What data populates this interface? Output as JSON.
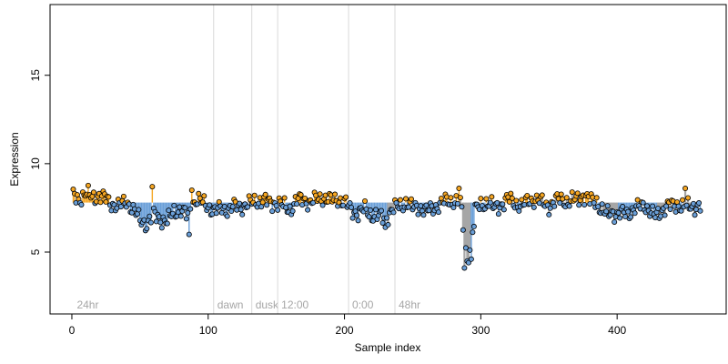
{
  "chart_data": {
    "type": "scatter",
    "title": "",
    "xlabel": "Sample index",
    "ylabel": "Expression",
    "xlim": [
      -16,
      480
    ],
    "ylim": [
      1.5,
      19
    ],
    "xticks": [
      0,
      100,
      200,
      300,
      400
    ],
    "yticks": [
      5,
      10,
      15
    ],
    "baseline": 7.8,
    "grid": false,
    "legend": "none",
    "colors": {
      "above": "#f5a623",
      "below": "#6a9fd8",
      "neutral": "#a6a6a6",
      "point_fill_high": "#f5a623",
      "point_fill_low": "#6a9fd8",
      "point_stroke": "#000000",
      "divider": "#d9d9d9",
      "region_label": "#a6a6a6"
    },
    "regions": [
      {
        "label": "24hr",
        "start": 1
      },
      {
        "label": "dawn",
        "start": 104
      },
      {
        "label": "dusk",
        "start": 132
      },
      {
        "label": "12:00",
        "start": 151
      },
      {
        "label": "0:00",
        "start": 203
      },
      {
        "label": "48hr",
        "start": 237
      }
    ],
    "gray_segments": [
      [
        232,
        238
      ],
      [
        263,
        268
      ],
      [
        285,
        292
      ],
      [
        338,
        372
      ],
      [
        388,
        400
      ],
      [
        430,
        445
      ],
      [
        448,
        460
      ]
    ],
    "anchors": [
      [
        1,
        8.2
      ],
      [
        5,
        8.0
      ],
      [
        10,
        8.3
      ],
      [
        15,
        8.1
      ],
      [
        20,
        8.2
      ],
      [
        25,
        8.0
      ],
      [
        30,
        7.7
      ],
      [
        35,
        7.6
      ],
      [
        40,
        7.9
      ],
      [
        45,
        7.4
      ],
      [
        50,
        6.8
      ],
      [
        55,
        6.6
      ],
      [
        60,
        7.1
      ],
      [
        65,
        6.9
      ],
      [
        70,
        6.7
      ],
      [
        75,
        7.3
      ],
      [
        80,
        7.4
      ],
      [
        85,
        7.0
      ],
      [
        88,
        7.7
      ],
      [
        92,
        8.0
      ],
      [
        95,
        7.8
      ],
      [
        100,
        7.6
      ],
      [
        105,
        7.3
      ],
      [
        110,
        7.5
      ],
      [
        115,
        7.4
      ],
      [
        120,
        7.6
      ],
      [
        125,
        7.6
      ],
      [
        130,
        7.7
      ],
      [
        135,
        7.9
      ],
      [
        140,
        7.9
      ],
      [
        145,
        7.8
      ],
      [
        150,
        7.8
      ],
      [
        155,
        7.6
      ],
      [
        160,
        7.4
      ],
      [
        165,
        7.9
      ],
      [
        170,
        8.0
      ],
      [
        175,
        7.8
      ],
      [
        180,
        8.0
      ],
      [
        185,
        8.1
      ],
      [
        190,
        7.9
      ],
      [
        195,
        8.0
      ],
      [
        200,
        7.8
      ],
      [
        205,
        7.4
      ],
      [
        210,
        7.2
      ],
      [
        215,
        7.4
      ],
      [
        220,
        7.1
      ],
      [
        225,
        7.0
      ],
      [
        230,
        6.9
      ],
      [
        235,
        7.4
      ],
      [
        240,
        7.6
      ],
      [
        245,
        7.8
      ],
      [
        250,
        7.5
      ],
      [
        255,
        7.6
      ],
      [
        260,
        7.3
      ],
      [
        265,
        7.5
      ],
      [
        270,
        7.7
      ],
      [
        275,
        7.9
      ],
      [
        280,
        7.9
      ],
      [
        285,
        7.8
      ],
      [
        288,
        5.8
      ],
      [
        290,
        4.5
      ],
      [
        293,
        5.5
      ],
      [
        296,
        7.3
      ],
      [
        300,
        7.7
      ],
      [
        305,
        7.8
      ],
      [
        310,
        7.5
      ],
      [
        315,
        7.7
      ],
      [
        320,
        8.0
      ],
      [
        325,
        7.8
      ],
      [
        330,
        7.6
      ],
      [
        335,
        7.9
      ],
      [
        340,
        8.0
      ],
      [
        345,
        7.8
      ],
      [
        350,
        7.6
      ],
      [
        355,
        7.9
      ],
      [
        360,
        8.0
      ],
      [
        365,
        7.8
      ],
      [
        370,
        8.0
      ],
      [
        375,
        8.2
      ],
      [
        380,
        7.9
      ],
      [
        385,
        7.9
      ],
      [
        388,
        7.4
      ],
      [
        392,
        7.1
      ],
      [
        396,
        7.3
      ],
      [
        400,
        7.1
      ],
      [
        405,
        7.2
      ],
      [
        410,
        7.3
      ],
      [
        415,
        7.5
      ],
      [
        420,
        7.7
      ],
      [
        425,
        7.2
      ],
      [
        428,
        7.0
      ],
      [
        432,
        7.3
      ],
      [
        436,
        7.6
      ],
      [
        440,
        7.6
      ],
      [
        445,
        7.7
      ],
      [
        450,
        7.5
      ],
      [
        455,
        7.6
      ],
      [
        461,
        7.6
      ]
    ],
    "spikes": [
      {
        "x": 59,
        "y": 8.7
      },
      {
        "x": 88,
        "y": 8.5
      },
      {
        "x": 86,
        "y": 6.0
      },
      {
        "x": 288,
        "y": 4.1
      },
      {
        "x": 291,
        "y": 4.4
      },
      {
        "x": 293,
        "y": 4.6
      },
      {
        "x": 284,
        "y": 8.6
      },
      {
        "x": 450,
        "y": 8.6
      },
      {
        "x": 230,
        "y": 6.4
      }
    ],
    "n_points": 461
  }
}
